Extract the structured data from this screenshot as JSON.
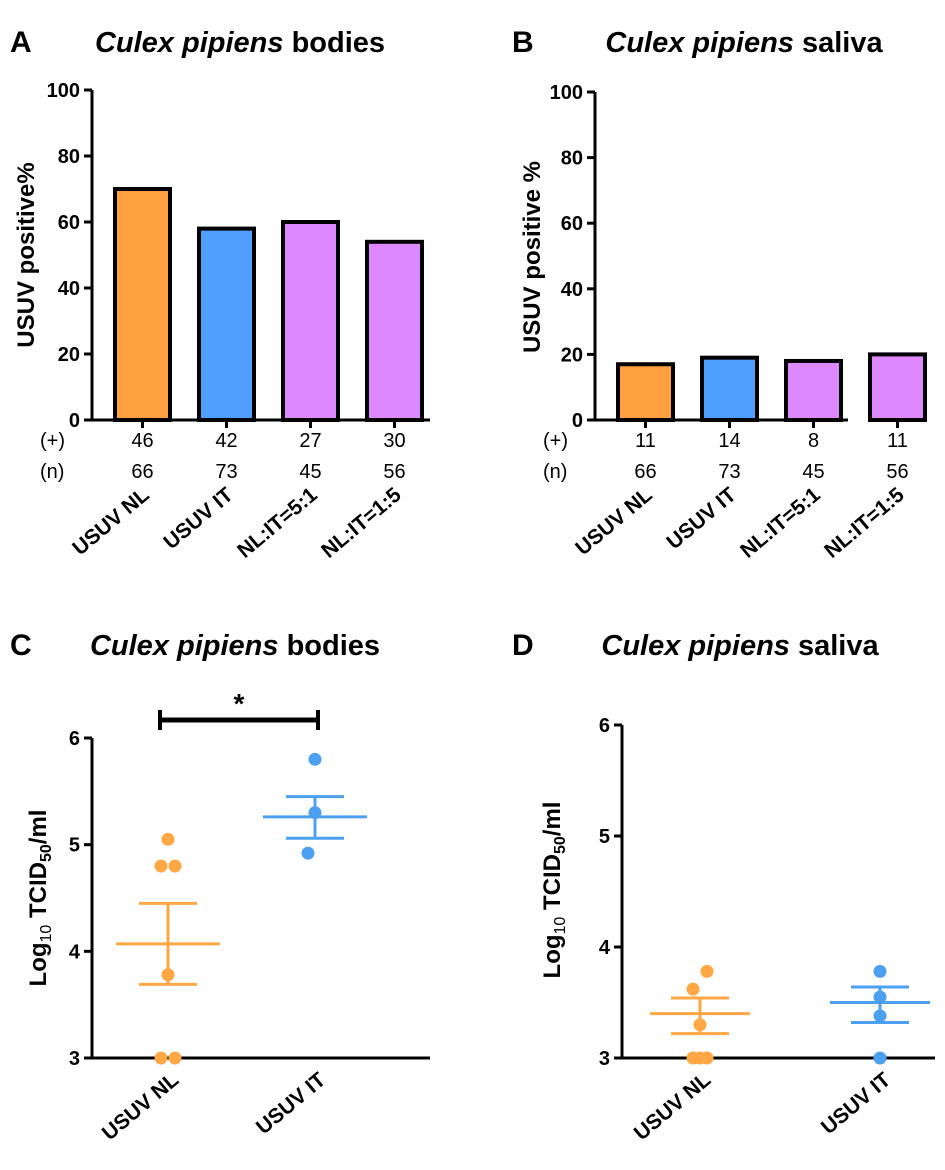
{
  "colors": {
    "nl": "#ffa040",
    "it": "#4f9fff",
    "mix": "#dd88ff",
    "nl_dot": "#ffa745",
    "it_dot": "#4da0f0"
  },
  "chart_data": [
    {
      "type": "bar",
      "panel": "A",
      "title_italic": "Culex pipiens",
      "title_rest": "bodies",
      "ylabel": "USUV positive%",
      "ylim": [
        0,
        100
      ],
      "yticks": [
        "0",
        "20",
        "40",
        "60",
        "80",
        "100"
      ],
      "categories": [
        "USUV NL",
        "USUV IT",
        "NL:IT=5:1",
        "NL:IT=1:5"
      ],
      "values": [
        70,
        58,
        60,
        54
      ],
      "color_keys": [
        "nl",
        "it",
        "mix",
        "mix"
      ],
      "count_row_labels": [
        "(+)",
        "(n)"
      ],
      "positives": [
        "46",
        "42",
        "27",
        "30"
      ],
      "totals": [
        "66",
        "73",
        "45",
        "56"
      ]
    },
    {
      "type": "bar",
      "panel": "B",
      "title_italic": "Culex pipiens",
      "title_rest": "saliva",
      "ylabel": "USUV positive %",
      "ylim": [
        0,
        100
      ],
      "yticks": [
        "0",
        "20",
        "40",
        "60",
        "80",
        "100"
      ],
      "categories": [
        "USUV NL",
        "USUV IT",
        "NL:IT=5:1",
        "NL:IT=1:5"
      ],
      "values": [
        17,
        19,
        18,
        20
      ],
      "color_keys": [
        "nl",
        "it",
        "mix",
        "mix"
      ],
      "count_row_labels": [
        "(+)",
        "(n)"
      ],
      "positives": [
        "11",
        "14",
        "8",
        "11"
      ],
      "totals": [
        "66",
        "73",
        "45",
        "56"
      ]
    },
    {
      "type": "scatter",
      "panel": "C",
      "title_italic": "Culex pipiens",
      "title_rest": "bodies",
      "ylabel_base": "Log",
      "ylabel_sub1": "10",
      "ylabel_mid": " TCID",
      "ylabel_sub2": "50",
      "ylabel_end": "/ml",
      "ylim": [
        3,
        6
      ],
      "yticks": [
        "3",
        "4",
        "5",
        "6"
      ],
      "categories": [
        "USUV NL",
        "USUV IT"
      ],
      "significance": "*",
      "groups": [
        {
          "name": "USUV NL",
          "color_key": "nl",
          "points": [
            {
              "dx": 0,
              "y": 5.05
            },
            {
              "dx": -1,
              "y": 4.8
            },
            {
              "dx": 1,
              "y": 4.8
            },
            {
              "dx": 0,
              "y": 3.78
            },
            {
              "dx": -1,
              "y": 3.0
            },
            {
              "dx": 1,
              "y": 3.0
            }
          ],
          "mean": 4.07,
          "sem": [
            3.69,
            4.45
          ]
        },
        {
          "name": "USUV IT",
          "color_key": "it",
          "points": [
            {
              "dx": 0,
              "y": 5.8
            },
            {
              "dx": 0,
              "y": 5.3
            },
            {
              "dx": -1,
              "y": 4.92
            }
          ],
          "mean": 5.26,
          "sem": [
            5.06,
            5.45
          ]
        }
      ]
    },
    {
      "type": "scatter",
      "panel": "D",
      "title_italic": "Culex pipiens",
      "title_rest": "saliva",
      "ylabel_base": "Log",
      "ylabel_sub1": "10",
      "ylabel_mid": " TCID",
      "ylabel_sub2": "50",
      "ylabel_end": "/ml",
      "ylim": [
        3,
        6
      ],
      "yticks": [
        "3",
        "4",
        "5",
        "6"
      ],
      "categories": [
        "USUV NL",
        "USUV IT"
      ],
      "groups": [
        {
          "name": "USUV NL",
          "color_key": "nl",
          "points": [
            {
              "dx": 1,
              "y": 3.78
            },
            {
              "dx": -1,
              "y": 3.62
            },
            {
              "dx": 0,
              "y": 3.3
            },
            {
              "dx": -1,
              "y": 3.0
            },
            {
              "dx": 0,
              "y": 3.0
            },
            {
              "dx": 1,
              "y": 3.0
            }
          ],
          "mean": 3.4,
          "sem": [
            3.22,
            3.54
          ]
        },
        {
          "name": "USUV IT",
          "color_key": "it",
          "points": [
            {
              "dx": 0,
              "y": 3.78
            },
            {
              "dx": 0,
              "y": 3.55
            },
            {
              "dx": 0,
              "y": 3.38
            },
            {
              "dx": 0,
              "y": 3.0
            }
          ],
          "mean": 3.5,
          "sem": [
            3.32,
            3.64
          ]
        }
      ]
    }
  ]
}
